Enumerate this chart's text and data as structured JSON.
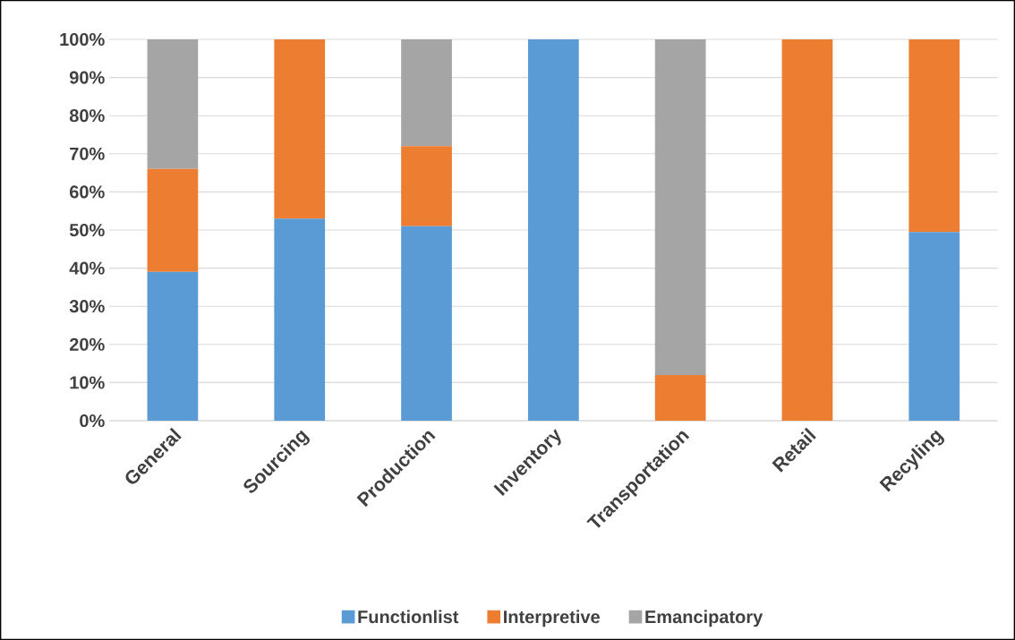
{
  "chart_data": {
    "type": "bar",
    "stacked": true,
    "categories": [
      "General",
      "Sourcing",
      "Production",
      "Inventory",
      "Transportation",
      "Retail",
      "Recyling"
    ],
    "series": [
      {
        "name": "Functionlist",
        "color": "#5b9bd5",
        "values": [
          39,
          53,
          51,
          100,
          0,
          0,
          49.5
        ]
      },
      {
        "name": "Interpretive",
        "color": "#ed7d31",
        "values": [
          27,
          47,
          21,
          0,
          12,
          100,
          50.5
        ]
      },
      {
        "name": "Emancipatory",
        "color": "#a5a5a5",
        "values": [
          34,
          0,
          28,
          0,
          88,
          0,
          0
        ]
      }
    ],
    "ylim": [
      0,
      100
    ],
    "yticks": [
      {
        "value": 0,
        "label": "0%"
      },
      {
        "value": 10,
        "label": "10%"
      },
      {
        "value": 20,
        "label": "20%"
      },
      {
        "value": 30,
        "label": "30%"
      },
      {
        "value": 40,
        "label": "40%"
      },
      {
        "value": 50,
        "label": "50%"
      },
      {
        "value": 60,
        "label": "60%"
      },
      {
        "value": 70,
        "label": "70%"
      },
      {
        "value": 80,
        "label": "80%"
      },
      {
        "value": 90,
        "label": "90%"
      },
      {
        "value": 100,
        "label": "100%"
      }
    ],
    "grid": "y",
    "legend": "bottom"
  }
}
